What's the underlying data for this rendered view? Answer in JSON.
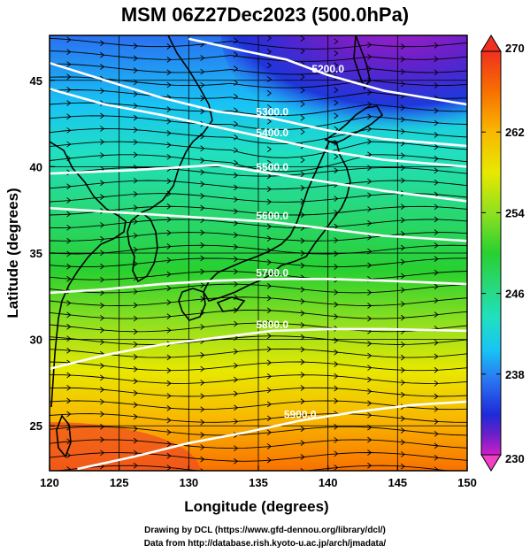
{
  "title": "MSM 06Z27Dec2023 (500.0hPa)",
  "footer": {
    "line1": "Drawing by DCL (https://www.gfd-dennou.org/library/dcl/)",
    "line2": "Data from http://database.rish.kyoto-u.ac.jp/arch/jmadata/"
  },
  "map": {
    "xlabel": "Longitude (degrees)",
    "ylabel": "Latitude  (degrees)",
    "xlim": [
      120,
      150
    ],
    "ylim": [
      22.4,
      47.6
    ],
    "xticks": [
      "120",
      "125",
      "130",
      "135",
      "140",
      "145",
      "150"
    ],
    "yticks": [
      "25",
      "30",
      "35",
      "40",
      "45"
    ],
    "grid": true
  },
  "colorbar": {
    "min": 230,
    "max": 270,
    "ticks": [
      "270",
      "262",
      "254",
      "246",
      "238",
      "230"
    ],
    "colors": [
      "#cc20c8",
      "#6a20c8",
      "#1e2ad8",
      "#2a70f0",
      "#18c4f4",
      "#20e0c0",
      "#28d878",
      "#28d030",
      "#90e020",
      "#e8e800",
      "#f8b800",
      "#f87000",
      "#f03020"
    ]
  },
  "contours": [
    {
      "label": "5200.0",
      "path": [
        [
          130,
          47.4
        ],
        [
          134,
          46.7
        ],
        [
          137,
          46.2
        ],
        [
          140,
          45.3
        ],
        [
          144,
          44.4
        ],
        [
          150,
          43.6
        ]
      ]
    },
    {
      "label": "5300.0",
      "path": [
        [
          120,
          46.0
        ],
        [
          124,
          45.0
        ],
        [
          128,
          44.0
        ],
        [
          132,
          43.2
        ],
        [
          136,
          42.8
        ],
        [
          140,
          42.1
        ],
        [
          144,
          41.6
        ],
        [
          150,
          41.2
        ]
      ]
    },
    {
      "label": "5400.0",
      "path": [
        [
          120,
          44.5
        ],
        [
          124,
          43.6
        ],
        [
          128,
          43.0
        ],
        [
          132,
          42.3
        ],
        [
          136,
          41.6
        ],
        [
          140,
          40.9
        ],
        [
          144,
          40.4
        ],
        [
          150,
          40.0
        ]
      ]
    },
    {
      "label": "5500.0",
      "path": [
        [
          120,
          39.6
        ],
        [
          126,
          39.8
        ],
        [
          132,
          40.1
        ],
        [
          136,
          39.6
        ],
        [
          140,
          39.1
        ],
        [
          144,
          38.6
        ],
        [
          150,
          38.0
        ]
      ]
    },
    {
      "label": "5600.0",
      "path": [
        [
          120,
          37.6
        ],
        [
          126,
          37.3
        ],
        [
          132,
          37.0
        ],
        [
          136,
          36.8
        ],
        [
          140,
          36.4
        ],
        [
          144,
          36.0
        ],
        [
          150,
          35.7
        ]
      ]
    },
    {
      "label": "5700.0",
      "path": [
        [
          120,
          32.7
        ],
        [
          124,
          32.9
        ],
        [
          128,
          33.2
        ],
        [
          132,
          33.4
        ],
        [
          136,
          33.5
        ],
        [
          140,
          33.5
        ],
        [
          144,
          33.4
        ],
        [
          150,
          33.2
        ]
      ]
    },
    {
      "label": "5800.0",
      "path": [
        [
          120,
          28.3
        ],
        [
          124,
          29.1
        ],
        [
          128,
          29.7
        ],
        [
          132,
          30.1
        ],
        [
          136,
          30.5
        ],
        [
          140,
          30.6
        ],
        [
          144,
          30.6
        ],
        [
          150,
          30.5
        ]
      ]
    },
    {
      "label": "5900.0",
      "path": [
        [
          122,
          22.5
        ],
        [
          126,
          23.2
        ],
        [
          130,
          24.0
        ],
        [
          134,
          24.6
        ],
        [
          138,
          25.3
        ],
        [
          142,
          25.8
        ],
        [
          146,
          26.2
        ],
        [
          150,
          26.4
        ]
      ]
    }
  ],
  "labels_shown": [
    "5200.0",
    "5300.0",
    "5400.0",
    "5500.0",
    "5600.0",
    "5700.0",
    "5800.0",
    "5900.0"
  ]
}
